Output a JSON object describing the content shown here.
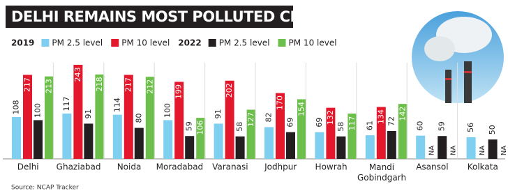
{
  "chart_data": {
    "type": "bar",
    "title": "DELHI REMAINS MOST POLLUTED CITY",
    "legend_groups": [
      "2019",
      "2022"
    ],
    "categories": [
      "Delhi",
      "Ghaziabad",
      "Noida",
      "Moradabad",
      "Varanasi",
      "Jodhpur",
      "Howrah",
      "Mandi Gobindgarh",
      "Asansol",
      "Kolkata"
    ],
    "series": [
      {
        "name": "PM 2.5 level",
        "group": 0,
        "color": "#7fcff0",
        "values": [
          108,
          117,
          114,
          100,
          91,
          82,
          69,
          61,
          60,
          56
        ]
      },
      {
        "name": "PM 10 level",
        "group": 0,
        "color": "#e3182d",
        "values": [
          217,
          243,
          217,
          199,
          202,
          170,
          132,
          134,
          null,
          null
        ],
        "value_labels": {
          "8": "NA",
          "9": "NA"
        }
      },
      {
        "name": "PM 2.5 level",
        "group": 1,
        "color": "#231f20",
        "values": [
          100,
          91,
          80,
          59,
          58,
          69,
          58,
          72,
          59,
          50
        ]
      },
      {
        "name": "PM 10 level",
        "group": 1,
        "color": "#6cbf4a",
        "values": [
          213,
          218,
          212,
          106,
          127,
          154,
          117,
          142,
          null,
          null
        ],
        "value_labels": {
          "8": "NA",
          "9": "NA"
        }
      }
    ],
    "source": "Source: NCAP Tracker"
  }
}
